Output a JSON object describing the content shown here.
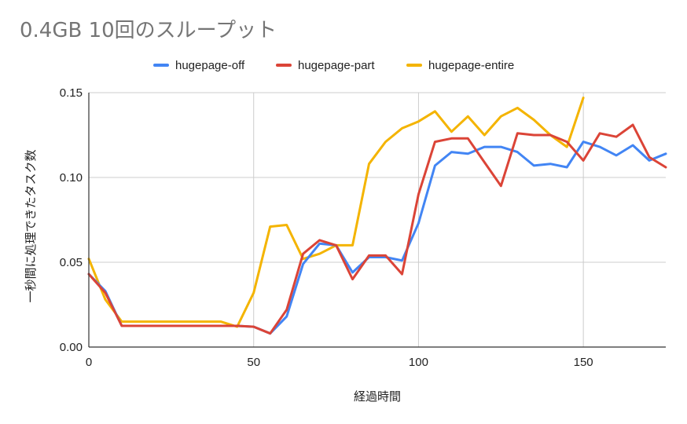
{
  "chart_data": {
    "type": "line",
    "title": "0.4GB 10回のスループット",
    "xlabel": "経過時間",
    "ylabel": "一秒間に処理できたタスク数",
    "xlim": [
      0,
      175
    ],
    "ylim": [
      0,
      0.15
    ],
    "x_ticks": [
      0,
      50,
      100,
      150
    ],
    "x_tick_labels": [
      "0",
      "50",
      "100",
      "150"
    ],
    "y_ticks": [
      0,
      0.05,
      0.1,
      0.15
    ],
    "y_tick_labels": [
      "0.00",
      "0.05",
      "0.10",
      "0.15"
    ],
    "grid": true,
    "legend_position": "top",
    "series": [
      {
        "name": "hugepage-off",
        "color": "#4285f4",
        "x": [
          0,
          5,
          10,
          15,
          20,
          25,
          30,
          35,
          40,
          45,
          50,
          55,
          60,
          65,
          70,
          75,
          80,
          85,
          90,
          95,
          100,
          105,
          110,
          115,
          120,
          125,
          130,
          135,
          140,
          145,
          150,
          155,
          160,
          165,
          170,
          175
        ],
        "y": [
          0.043,
          0.033,
          0.0125,
          0.0125,
          0.0125,
          0.0125,
          0.0125,
          0.0125,
          0.0125,
          0.0125,
          0.012,
          0.008,
          0.018,
          0.049,
          0.061,
          0.06,
          0.044,
          0.053,
          0.053,
          0.051,
          0.073,
          0.107,
          0.115,
          0.114,
          0.118,
          0.118,
          0.115,
          0.107,
          0.108,
          0.106,
          0.121,
          0.118,
          0.113,
          0.119,
          0.11,
          0.114
        ]
      },
      {
        "name": "hugepage-part",
        "color": "#db4437",
        "x": [
          0,
          5,
          10,
          15,
          20,
          25,
          30,
          35,
          40,
          45,
          50,
          55,
          60,
          65,
          70,
          75,
          80,
          85,
          90,
          95,
          100,
          105,
          110,
          115,
          120,
          125,
          130,
          135,
          140,
          145,
          150,
          155,
          160,
          165,
          170,
          175
        ],
        "y": [
          0.043,
          0.032,
          0.0125,
          0.0125,
          0.0125,
          0.0125,
          0.0125,
          0.0125,
          0.0125,
          0.0125,
          0.012,
          0.008,
          0.022,
          0.055,
          0.063,
          0.06,
          0.04,
          0.054,
          0.054,
          0.043,
          0.09,
          0.121,
          0.123,
          0.123,
          0.109,
          0.095,
          0.126,
          0.125,
          0.125,
          0.121,
          0.11,
          0.126,
          0.124,
          0.131,
          0.112,
          0.106
        ]
      },
      {
        "name": "hugepage-entire",
        "color": "#f4b400",
        "x": [
          0,
          5,
          10,
          15,
          20,
          25,
          30,
          35,
          40,
          45,
          50,
          55,
          60,
          65,
          70,
          75,
          80,
          85,
          90,
          95,
          100,
          105,
          110,
          115,
          120,
          125,
          130,
          135,
          140,
          145,
          150
        ],
        "y": [
          0.052,
          0.028,
          0.015,
          0.015,
          0.015,
          0.015,
          0.015,
          0.015,
          0.015,
          0.012,
          0.032,
          0.071,
          0.072,
          0.052,
          0.055,
          0.06,
          0.06,
          0.108,
          0.121,
          0.129,
          0.133,
          0.139,
          0.127,
          0.136,
          0.125,
          0.136,
          0.141,
          0.134,
          0.125,
          0.118,
          0.147
        ]
      }
    ]
  }
}
